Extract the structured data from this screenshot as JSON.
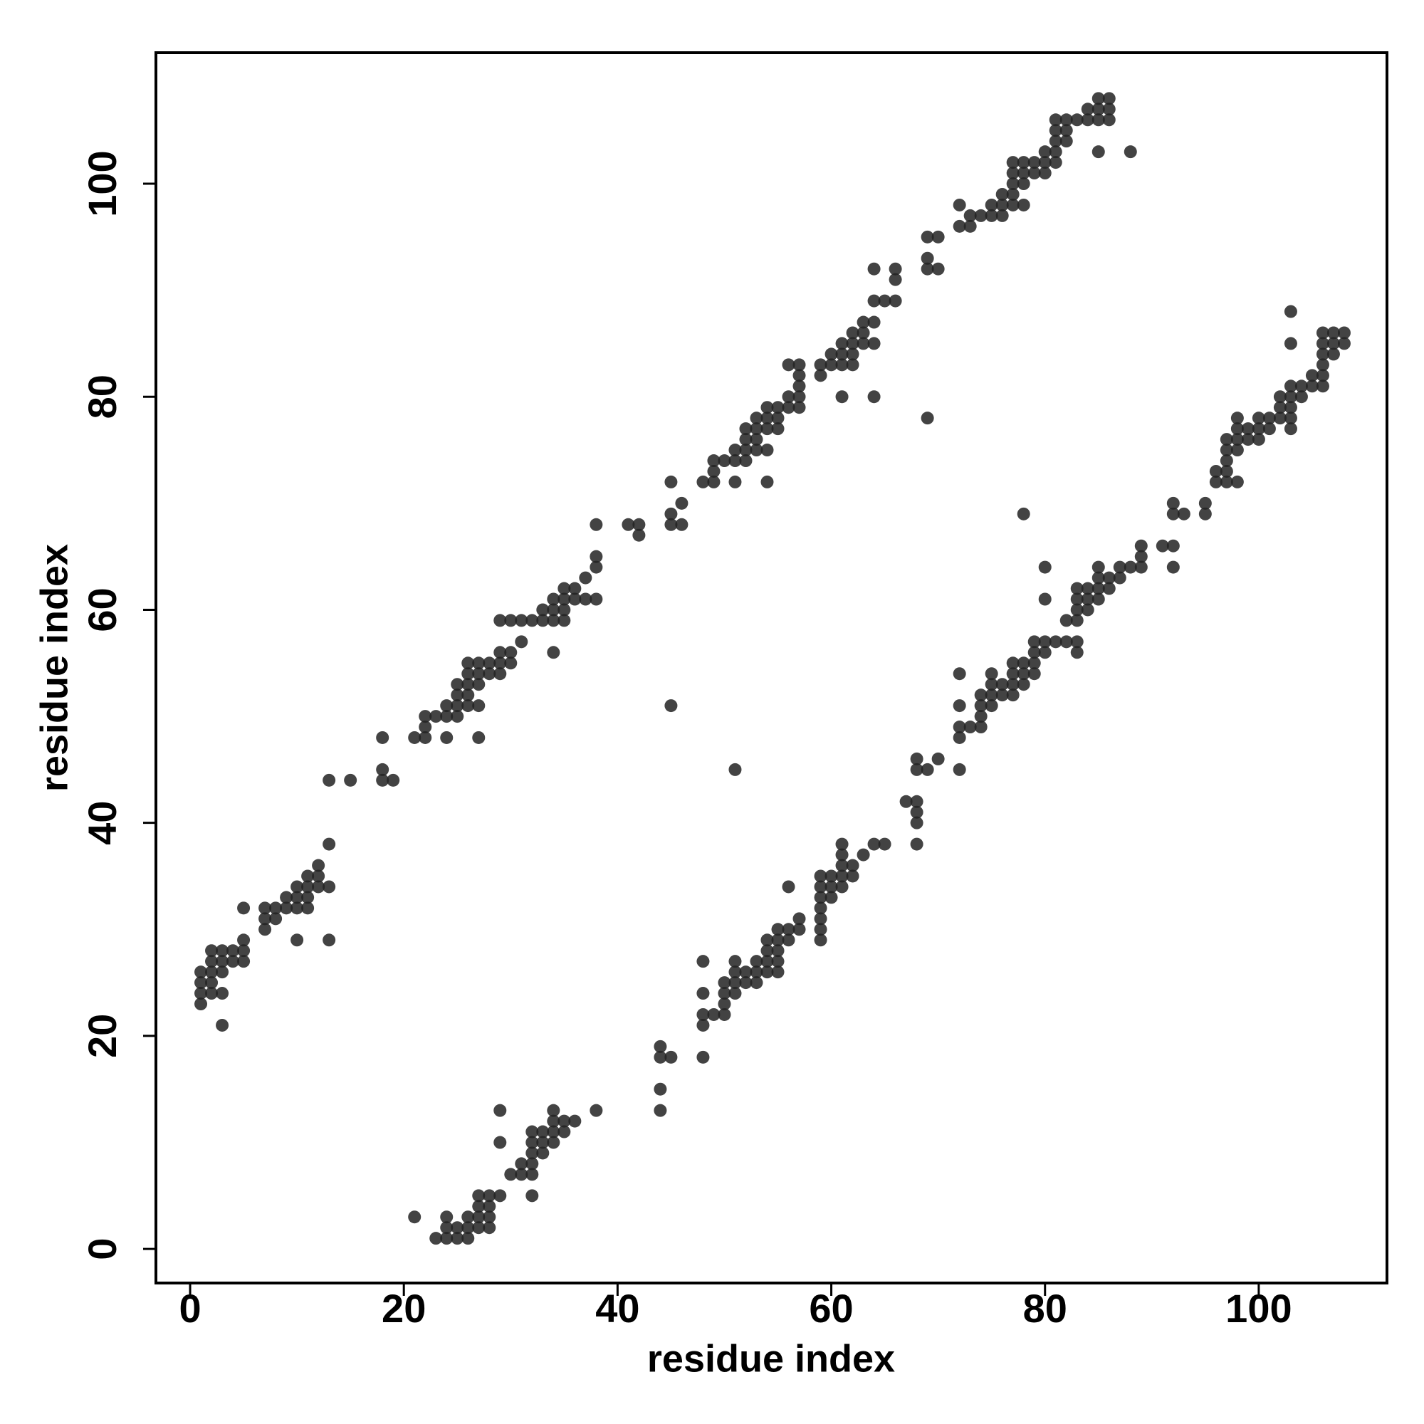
{
  "chart_data": {
    "type": "scatter",
    "x_label": "residue index",
    "y_label": "residue index",
    "xlim": [
      -3.2,
      112
    ],
    "ylim": [
      -3.2,
      112.3
    ],
    "xticks": [
      0,
      20,
      40,
      60,
      80,
      100
    ],
    "yticks": [
      0,
      20,
      40,
      60,
      80,
      100
    ],
    "color": "#222222",
    "x": [
      1,
      1,
      1,
      1,
      2,
      2,
      2,
      2,
      2,
      3,
      3,
      3,
      3,
      3,
      4,
      4,
      5,
      5,
      5,
      5,
      7,
      7,
      7,
      8,
      8,
      9,
      9,
      10,
      10,
      10,
      10,
      11,
      11,
      11,
      11,
      12,
      12,
      12,
      13,
      13,
      13,
      13,
      15,
      18,
      18,
      18,
      19,
      21,
      22,
      22,
      22,
      23,
      24,
      24,
      24,
      25,
      25,
      25,
      25,
      26,
      26,
      26,
      26,
      26,
      27,
      27,
      27,
      27,
      27,
      28,
      28,
      29,
      29,
      29,
      29,
      30,
      30,
      30,
      31,
      31,
      32,
      33,
      33,
      34,
      34,
      34,
      34,
      35,
      35,
      35,
      35,
      36,
      36,
      37,
      37,
      38,
      38,
      38,
      38,
      41,
      42,
      42,
      45,
      45,
      45,
      45,
      46,
      46,
      48,
      49,
      49,
      49,
      50,
      51,
      51,
      51,
      52,
      52,
      52,
      52,
      53,
      53,
      53,
      53,
      54,
      54,
      54,
      54,
      54,
      55,
      55,
      55,
      56,
      56,
      56,
      57,
      57,
      57,
      57,
      57,
      59,
      59,
      60,
      60,
      61,
      61,
      61,
      61,
      62,
      62,
      62,
      62,
      63,
      63,
      63,
      64,
      64,
      64,
      64,
      64,
      65,
      66,
      66,
      66,
      69,
      69,
      69,
      69,
      70,
      70,
      72,
      72,
      73,
      73,
      74,
      75,
      75,
      76,
      76,
      76,
      77,
      77,
      77,
      77,
      77,
      78,
      78,
      78,
      78,
      79,
      79,
      80,
      80,
      80,
      81,
      81,
      81,
      81,
      81,
      82,
      82,
      82,
      83,
      84,
      84,
      85,
      85,
      85,
      85,
      86,
      86,
      86,
      88,
      21,
      23,
      24,
      24,
      24,
      25,
      25,
      26,
      26,
      26,
      27,
      27,
      27,
      27,
      28,
      28,
      28,
      28,
      29,
      29,
      29,
      30,
      31,
      31,
      32,
      32,
      32,
      32,
      32,
      32,
      33,
      33,
      33,
      34,
      34,
      34,
      34,
      35,
      35,
      36,
      38,
      44,
      44,
      44,
      44,
      45,
      48,
      48,
      48,
      48,
      48,
      49,
      50,
      50,
      50,
      50,
      51,
      51,
      51,
      51,
      52,
      52,
      53,
      53,
      53,
      54,
      54,
      54,
      54,
      55,
      55,
      55,
      55,
      55,
      56,
      56,
      56,
      57,
      57,
      51,
      59,
      59,
      59,
      59,
      59,
      59,
      59,
      60,
      60,
      60,
      61,
      61,
      61,
      61,
      61,
      62,
      62,
      63,
      64,
      65,
      67,
      68,
      68,
      68,
      68,
      68,
      68,
      69,
      70,
      72,
      72,
      72,
      72,
      72,
      73,
      74,
      74,
      74,
      74,
      75,
      75,
      75,
      75,
      76,
      76,
      77,
      77,
      77,
      77,
      78,
      78,
      78,
      78,
      79,
      79,
      79,
      79,
      80,
      80,
      80,
      80,
      81,
      82,
      82,
      83,
      83,
      83,
      83,
      83,
      83,
      84,
      84,
      84,
      85,
      85,
      85,
      85,
      86,
      86,
      87,
      87,
      88,
      89,
      89,
      89,
      91,
      92,
      92,
      92,
      92,
      93,
      95,
      95,
      96,
      96,
      97,
      97,
      97,
      97,
      97,
      98,
      98,
      98,
      98,
      98,
      99,
      99,
      100,
      100,
      100,
      101,
      101,
      102,
      102,
      102,
      103,
      103,
      103,
      103,
      103,
      104,
      104,
      105,
      105,
      106,
      106,
      106,
      106,
      106,
      106,
      107,
      107,
      107,
      108,
      108,
      103,
      103
    ],
    "values": [
      23,
      24,
      25,
      26,
      24,
      25,
      26,
      27,
      28,
      21,
      24,
      26,
      27,
      28,
      27,
      28,
      27,
      28,
      29,
      32,
      30,
      31,
      32,
      31,
      32,
      32,
      33,
      29,
      32,
      33,
      34,
      32,
      33,
      34,
      35,
      34,
      35,
      36,
      29,
      34,
      38,
      44,
      44,
      44,
      45,
      48,
      44,
      48,
      48,
      49,
      50,
      50,
      48,
      50,
      51,
      50,
      51,
      52,
      53,
      51,
      52,
      53,
      54,
      55,
      48,
      51,
      53,
      54,
      55,
      54,
      55,
      54,
      55,
      56,
      59,
      55,
      56,
      59,
      57,
      59,
      59,
      59,
      60,
      56,
      59,
      60,
      61,
      59,
      60,
      61,
      62,
      61,
      62,
      61,
      63,
      61,
      64,
      65,
      68,
      68,
      67,
      68,
      51,
      68,
      69,
      72,
      68,
      70,
      72,
      72,
      73,
      74,
      74,
      72,
      74,
      75,
      74,
      75,
      76,
      77,
      75,
      76,
      77,
      78,
      72,
      75,
      77,
      78,
      79,
      77,
      78,
      79,
      79,
      80,
      83,
      79,
      80,
      81,
      82,
      83,
      82,
      83,
      83,
      84,
      80,
      83,
      84,
      85,
      83,
      84,
      85,
      86,
      85,
      86,
      87,
      80,
      85,
      87,
      89,
      92,
      89,
      89,
      91,
      92,
      78,
      92,
      93,
      95,
      92,
      95,
      96,
      98,
      96,
      97,
      97,
      97,
      98,
      97,
      98,
      99,
      98,
      99,
      100,
      101,
      102,
      98,
      100,
      101,
      102,
      101,
      102,
      101,
      102,
      103,
      102,
      103,
      104,
      105,
      106,
      104,
      105,
      106,
      106,
      106,
      107,
      103,
      106,
      107,
      108,
      106,
      107,
      108,
      103,
      3,
      1,
      1,
      2,
      3,
      1,
      2,
      1,
      2,
      3,
      2,
      3,
      4,
      5,
      2,
      3,
      4,
      5,
      5,
      10,
      13,
      7,
      7,
      8,
      5,
      7,
      8,
      9,
      10,
      11,
      9,
      10,
      11,
      10,
      11,
      12,
      13,
      11,
      12,
      12,
      13,
      13,
      15,
      18,
      19,
      18,
      18,
      21,
      22,
      24,
      27,
      22,
      22,
      23,
      24,
      25,
      24,
      25,
      26,
      27,
      25,
      26,
      25,
      26,
      27,
      26,
      27,
      28,
      29,
      26,
      27,
      28,
      29,
      30,
      29,
      30,
      34,
      30,
      31,
      45,
      29,
      30,
      31,
      32,
      33,
      34,
      35,
      33,
      34,
      35,
      34,
      35,
      36,
      37,
      38,
      35,
      36,
      37,
      38,
      38,
      42,
      38,
      40,
      41,
      42,
      45,
      46,
      45,
      46,
      45,
      48,
      49,
      51,
      54,
      49,
      49,
      50,
      51,
      52,
      51,
      52,
      53,
      54,
      52,
      53,
      52,
      53,
      54,
      55,
      53,
      54,
      55,
      69,
      54,
      55,
      56,
      57,
      56,
      57,
      61,
      64,
      57,
      57,
      59,
      56,
      57,
      59,
      60,
      61,
      62,
      60,
      61,
      62,
      61,
      62,
      63,
      64,
      62,
      63,
      63,
      64,
      64,
      64,
      65,
      66,
      66,
      64,
      66,
      69,
      70,
      69,
      69,
      70,
      72,
      73,
      72,
      73,
      74,
      75,
      76,
      72,
      75,
      76,
      77,
      78,
      76,
      77,
      76,
      77,
      78,
      77,
      78,
      78,
      79,
      80,
      77,
      78,
      79,
      80,
      81,
      80,
      81,
      81,
      82,
      81,
      82,
      83,
      84,
      85,
      86,
      84,
      85,
      86,
      85,
      86,
      85,
      88
    ]
  }
}
